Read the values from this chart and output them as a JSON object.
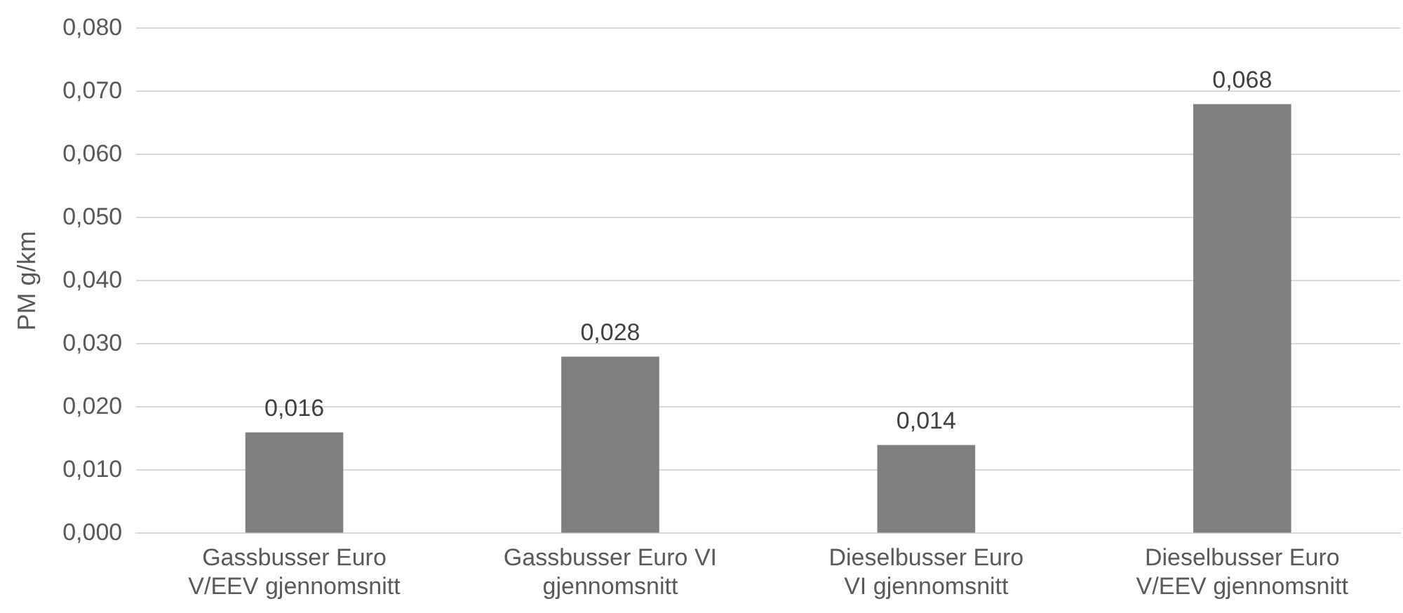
{
  "chart_data": {
    "type": "bar",
    "ylabel": "PM g/km",
    "categories": [
      "Gassbusser Euro V/EEV gjennomsnitt",
      "Gassbusser Euro VI gjennomsnitt",
      "Dieselbusser Euro VI gjennomsnitt",
      "Dieselbusser Euro V/EEV gjennomsnitt"
    ],
    "values": [
      0.016,
      0.028,
      0.014,
      0.068
    ],
    "value_labels": [
      "0,016",
      "0,028",
      "0,014",
      "0,068"
    ],
    "color": "#7f7f7f",
    "ylim": [
      0,
      0.08
    ],
    "yticks": [
      {
        "value": 0,
        "label": "0,000"
      },
      {
        "value": 0.01,
        "label": "0,010"
      },
      {
        "value": 0.02,
        "label": "0,020"
      },
      {
        "value": 0.03,
        "label": "0,030"
      },
      {
        "value": 0.04,
        "label": "0,040"
      },
      {
        "value": 0.05,
        "label": "0,050"
      },
      {
        "value": 0.06,
        "label": "0,060"
      },
      {
        "value": 0.07,
        "label": "0,070"
      },
      {
        "value": 0.08,
        "label": "0,080"
      }
    ],
    "grid": "y",
    "legend": false
  }
}
